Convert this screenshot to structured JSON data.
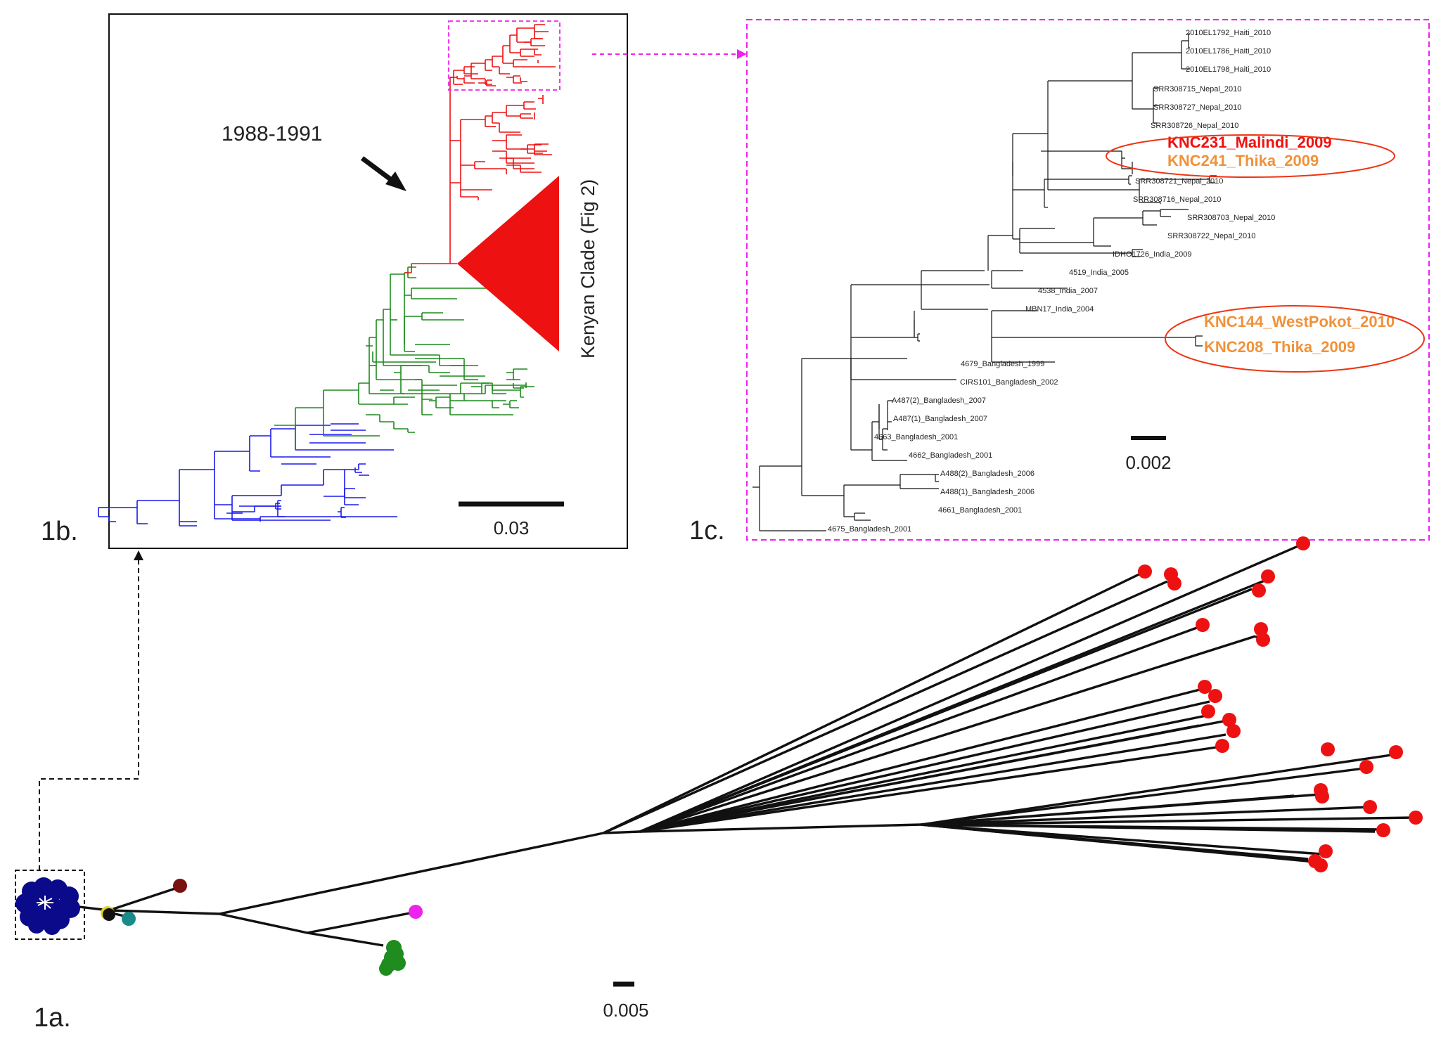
{
  "panels": {
    "a": "1a.",
    "b": "1b.",
    "c": "1c."
  },
  "panel_b": {
    "date_label": "1988-1991",
    "clade_label": "Kenyan Clade (Fig 2)",
    "scale": "0.03",
    "colors": {
      "asia": "#ee1111",
      "kenya": "#1d8a1d",
      "outgroup": "#1a1aee"
    }
  },
  "panel_a": {
    "scale": "0.005",
    "colors": {
      "red": "#ee1111",
      "green": "#1e8c1e",
      "blue": "#0a0a8a",
      "maroon": "#7a1010",
      "magenta": "#ee22ee",
      "teal": "#1a8a8a",
      "yellow": "#e6d21a"
    }
  },
  "panel_c": {
    "scale": "0.002",
    "tips": [
      "2010EL1792_Haiti_2010",
      "2010EL1786_Haiti_2010",
      "2010EL1798_Haiti_2010",
      "SRR308715_Nepal_2010",
      "SRR308727_Nepal_2010",
      "SRR308726_Nepal_2010",
      "SRR308721_Nepal_2010",
      "SRR308716_Nepal_2010",
      "SRR308703_Nepal_2010",
      "SRR308722_Nepal_2010",
      "IDHO1726_India_2009",
      "4519_India_2005",
      "4538_India_2007",
      "MBN17_India_2004",
      "4679_Bangladesh_1999",
      "CIRS101_Bangladesh_2002",
      "A487(2)_Bangladesh_2007",
      "A487(1)_Bangladesh_2007",
      "4663_Bangladesh_2001",
      "4662_Bangladesh_2001",
      "A488(2)_Bangladesh_2006",
      "A488(1)_Bangladesh_2006",
      "4661_Bangladesh_2001",
      "4675_Bangladesh_2001"
    ],
    "kenyan_tips": [
      {
        "label": "KNC231_Malindi_2009",
        "color": "#ee1111"
      },
      {
        "label": "KNC241_Thika_2009",
        "color": "#f0923a"
      },
      {
        "label": "KNC144_WestPokot_2010",
        "color": "#f0923a"
      },
      {
        "label": "KNC208_Thika_2009",
        "color": "#f0923a"
      }
    ]
  }
}
